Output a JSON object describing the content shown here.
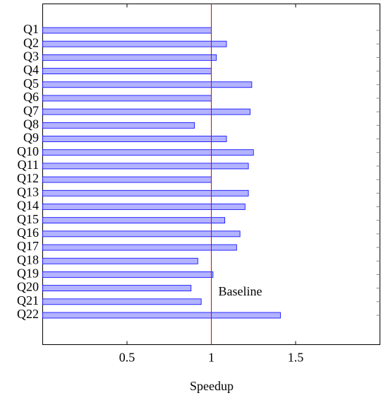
{
  "chart_data": {
    "type": "bar",
    "orientation": "horizontal",
    "categories": [
      "Q1",
      "Q2",
      "Q3",
      "Q4",
      "Q5",
      "Q6",
      "Q7",
      "Q8",
      "Q9",
      "Q10",
      "Q11",
      "Q12",
      "Q13",
      "Q14",
      "Q15",
      "Q16",
      "Q17",
      "Q18",
      "Q19",
      "Q20",
      "Q21",
      "Q22"
    ],
    "values": [
      1.0,
      1.09,
      1.03,
      1.0,
      1.24,
      1.0,
      1.23,
      0.9,
      1.09,
      1.25,
      1.22,
      1.0,
      1.22,
      1.2,
      1.08,
      1.17,
      1.15,
      0.92,
      1.01,
      0.88,
      0.94,
      1.41
    ],
    "color": "#b3b3ff",
    "edge_color": "#0000ff",
    "xlabel": "Speedup",
    "xlim": [
      0,
      2
    ],
    "xticks": [
      0.5,
      1,
      1.5
    ],
    "baseline": 1,
    "baseline_label": "Baseline",
    "baseline_color": "#e00000"
  }
}
